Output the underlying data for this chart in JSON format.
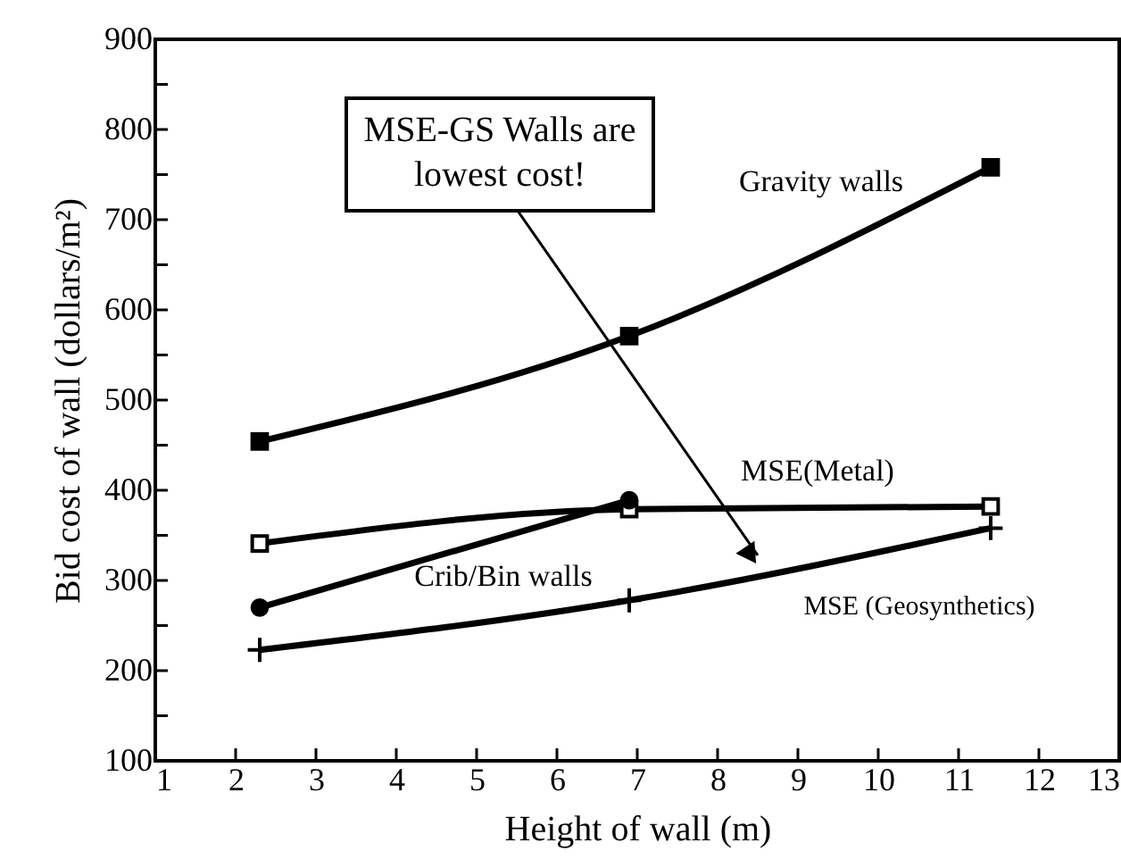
{
  "chart_data": {
    "type": "line",
    "xlabel": "Height of wall (m)",
    "ylabel": "Bid cost of wall (dollars/m²)",
    "xlim": [
      1,
      13
    ],
    "xticks": [
      1,
      2,
      3,
      4,
      5,
      6,
      7,
      8,
      9,
      10,
      11,
      12,
      13
    ],
    "ylim": [
      100,
      900
    ],
    "yticks": [
      100,
      {
        "value": 150,
        "label": null
      },
      200,
      {
        "value": 250,
        "label": null
      },
      300,
      {
        "value": 350,
        "label": null
      },
      400,
      {
        "value": 450,
        "label": null
      },
      500,
      {
        "value": 550,
        "label": null
      },
      600,
      {
        "value": 650,
        "label": null
      },
      700,
      {
        "value": 750,
        "label": null
      },
      800,
      {
        "value": 850,
        "label": null
      },
      900
    ],
    "grid": false,
    "line_style": "solid",
    "series": [
      {
        "name": "Gravity walls",
        "color": "#000000",
        "marker": "square",
        "x": [
          2.3,
          6.9,
          11.4
        ],
        "values": [
          454,
          571,
          758
        ]
      },
      {
        "name": "MSE(Metal)",
        "color": "#000000",
        "marker": "square_open",
        "x": [
          2.3,
          6.9,
          11.4
        ],
        "values": [
          341,
          379,
          382
        ]
      },
      {
        "name": "Crib/Bin walls",
        "color": "#000000",
        "marker": "circle",
        "x": [
          2.3,
          6.9
        ],
        "values": [
          270,
          389
        ]
      },
      {
        "name": "MSE (Geosynthetics)",
        "color": "#000000",
        "marker": "cross",
        "x": [
          2.3,
          6.9,
          11.4
        ],
        "values": [
          223,
          278,
          358
        ]
      }
    ],
    "annotations": [
      {
        "text": "MSE-GS Walls are lowest cost!",
        "x": 8.5,
        "y": 316
      }
    ]
  }
}
